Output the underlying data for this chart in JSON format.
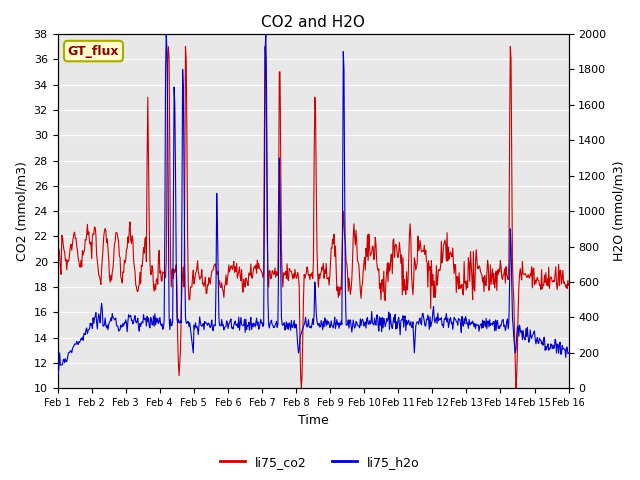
{
  "title": "CO2 and H2O",
  "xlabel": "Time",
  "ylabel_left": "CO2 (mmol/m3)",
  "ylabel_right": "H2O (mmol/m3)",
  "ylim_left": [
    10,
    38
  ],
  "ylim_right": [
    0,
    2000
  ],
  "yticks_left": [
    10,
    12,
    14,
    16,
    18,
    20,
    22,
    24,
    26,
    28,
    30,
    32,
    34,
    36,
    38
  ],
  "yticks_right": [
    0,
    200,
    400,
    600,
    800,
    1000,
    1200,
    1400,
    1600,
    1800,
    2000
  ],
  "xtick_labels": [
    "Feb 1",
    "Feb 2",
    "Feb 3",
    "Feb 4",
    "Feb 5",
    "Feb 6",
    "Feb 7",
    "Feb 8",
    "Feb 9",
    "Feb 10",
    "Feb 11",
    "Feb 12",
    "Feb 13",
    "Feb 14",
    "Feb 15",
    "Feb 16"
  ],
  "color_co2": "#cc0000",
  "color_h2o": "#0000cc",
  "legend_label_co2": "li75_co2",
  "legend_label_h2o": "li75_h2o",
  "gt_flux_label": "GT_flux",
  "gt_flux_bg": "#ffffcc",
  "gt_flux_border": "#aaaa00",
  "gt_flux_text_color": "#8b0000",
  "fig_bg_color": "#ffffff",
  "plot_bg_color": "#e8e8e8",
  "grid_color": "#ffffff",
  "title_fontsize": 11,
  "n_days": 15,
  "n_pts": 720
}
